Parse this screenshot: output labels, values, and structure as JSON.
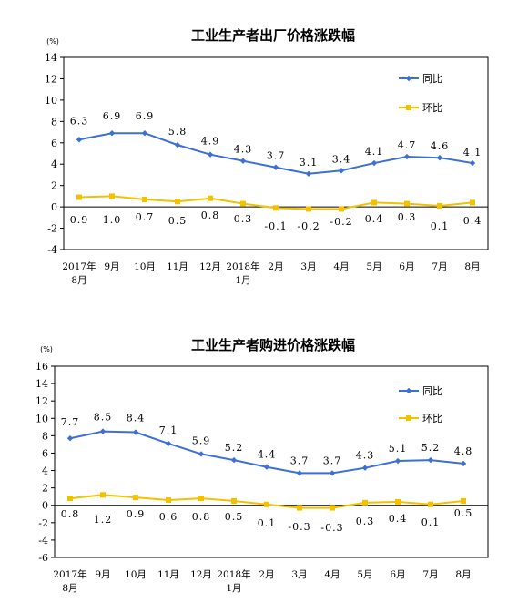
{
  "chart_data": [
    {
      "type": "line",
      "title": "工业生产者出厂价格涨跌幅",
      "unit": "(%)",
      "ylim": [
        -4,
        14
      ],
      "yticks": [
        "14",
        "12",
        "10",
        "8",
        "6",
        "4",
        "2",
        "0",
        "-2",
        "-4"
      ],
      "categories": [
        "2017年\n8月",
        "9月",
        "10月",
        "11月",
        "12月",
        "2018年\n1月",
        "2月",
        "3月",
        "4月",
        "5月",
        "6月",
        "7月",
        "8月"
      ],
      "legend_position": "top-right",
      "grid": false,
      "series": [
        {
          "name": "同比",
          "color": "#3c6fd8",
          "values": [
            6.3,
            6.9,
            6.9,
            5.8,
            4.9,
            4.3,
            3.7,
            3.1,
            3.4,
            4.1,
            4.7,
            4.6,
            4.1
          ],
          "labels": [
            "6.3",
            "6.9",
            "6.9",
            "5.8",
            "4.9",
            "4.3",
            "3.7",
            "3.1",
            "3.4",
            "4.1",
            "4.7",
            "4.6",
            "4.1"
          ]
        },
        {
          "name": "环比",
          "color": "#f2c200",
          "values": [
            0.9,
            1.0,
            0.7,
            0.5,
            0.8,
            0.3,
            -0.1,
            -0.2,
            -0.2,
            0.4,
            0.3,
            0.1,
            0.4
          ],
          "labels": [
            "0.9",
            "1.0",
            "0.7",
            "0.5",
            "0.8",
            "0.3",
            "-0.1",
            "-0.2",
            "-0.2",
            "0.4",
            "0.3",
            "0.1",
            "0.4"
          ]
        }
      ]
    },
    {
      "type": "line",
      "title": "工业生产者购进价格涨跌幅",
      "unit": "(%)",
      "ylim": [
        -6,
        16
      ],
      "yticks": [
        "16",
        "14",
        "12",
        "10",
        "8",
        "6",
        "4",
        "2",
        "0",
        "-2",
        "-4",
        "-6"
      ],
      "categories": [
        "2017年\n8月",
        "9月",
        "10月",
        "11月",
        "12月",
        "2018年\n1月",
        "2月",
        "3月",
        "4月",
        "5月",
        "6月",
        "7月",
        "8月"
      ],
      "legend_position": "top-right",
      "grid": false,
      "series": [
        {
          "name": "同比",
          "color": "#3c6fd8",
          "values": [
            7.7,
            8.5,
            8.4,
            7.1,
            5.9,
            5.2,
            4.4,
            3.7,
            3.7,
            4.3,
            5.1,
            5.2,
            4.8
          ],
          "labels": [
            "7.7",
            "8.5",
            "8.4",
            "7.1",
            "5.9",
            "5.2",
            "4.4",
            "3.7",
            "3.7",
            "4.3",
            "5.1",
            "5.2",
            "4.8"
          ]
        },
        {
          "name": "环比",
          "color": "#f2c200",
          "values": [
            0.8,
            1.2,
            0.9,
            0.6,
            0.8,
            0.5,
            0.1,
            -0.3,
            -0.3,
            0.3,
            0.4,
            0.1,
            0.5
          ],
          "labels": [
            "0.8",
            "1.2",
            "0.9",
            "0.6",
            "0.8",
            "0.5",
            "0.1",
            "-0.3",
            "-0.3",
            "0.3",
            "0.4",
            "0.1",
            "0.5"
          ]
        }
      ]
    }
  ]
}
